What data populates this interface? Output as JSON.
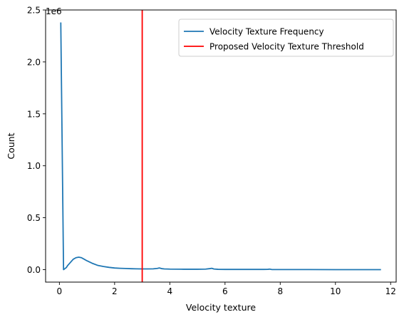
{
  "chart_data": {
    "type": "line",
    "title": "",
    "xlabel": "Velocity texture",
    "ylabel": "Count",
    "y_scale_label": "1e6",
    "xlim": [
      -0.5,
      12.2
    ],
    "ylim": [
      -0.12,
      2.5
    ],
    "y_unit_multiplier": 1000000,
    "x_ticks": [
      0,
      2,
      4,
      6,
      8,
      10,
      12
    ],
    "x_tick_labels": [
      "0",
      "2",
      "4",
      "6",
      "8",
      "10",
      "12"
    ],
    "y_ticks": [
      0.0,
      0.5,
      1.0,
      1.5,
      2.0,
      2.5
    ],
    "y_tick_labels": [
      "0.0",
      "0.5",
      "1.0",
      "1.5",
      "2.0",
      "2.5"
    ],
    "grid": false,
    "legend_position": "upper right",
    "series": [
      {
        "name": "Velocity Texture Frequency",
        "color": "#1f77b4",
        "x": [
          0.05,
          0.15,
          0.2,
          0.25,
          0.3,
          0.4,
          0.5,
          0.6,
          0.7,
          0.8,
          0.9,
          1.0,
          1.2,
          1.4,
          1.6,
          1.8,
          2.0,
          2.2,
          2.4,
          2.6,
          2.8,
          3.0,
          3.2,
          3.4,
          3.55,
          3.62,
          3.7,
          3.8,
          4.0,
          4.5,
          5.0,
          5.3,
          5.45,
          5.52,
          5.6,
          5.75,
          6.0,
          6.5,
          7.0,
          7.4,
          7.55,
          7.62,
          7.7,
          8.0,
          9.0,
          10.0,
          11.0,
          11.65
        ],
        "y": [
          2.38,
          0.0,
          0.01,
          0.02,
          0.04,
          0.07,
          0.1,
          0.115,
          0.12,
          0.115,
          0.1,
          0.085,
          0.06,
          0.04,
          0.03,
          0.022,
          0.016,
          0.013,
          0.011,
          0.009,
          0.008,
          0.007,
          0.007,
          0.008,
          0.012,
          0.016,
          0.01,
          0.007,
          0.005,
          0.004,
          0.004,
          0.005,
          0.01,
          0.013,
          0.006,
          0.003,
          0.002,
          0.002,
          0.002,
          0.002,
          0.003,
          0.005,
          0.001,
          0.001,
          0.001,
          0.0,
          0.0,
          0.0
        ]
      }
    ],
    "threshold": {
      "name": "Proposed Velocity Texture Threshold",
      "color": "#ff0000",
      "x": 3.0
    }
  }
}
